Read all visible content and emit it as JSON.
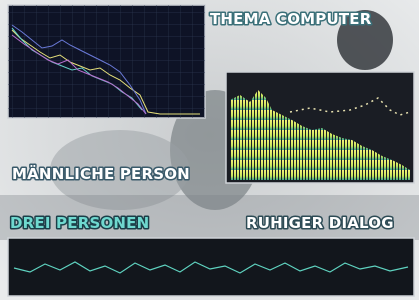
{
  "captions": {
    "topic": "THEMA COMPUTER",
    "speaker": "MÄNNLICHE PERSON",
    "people": "DREI PERSONEN",
    "mood": "RUHIGER DIALOG"
  }
}
